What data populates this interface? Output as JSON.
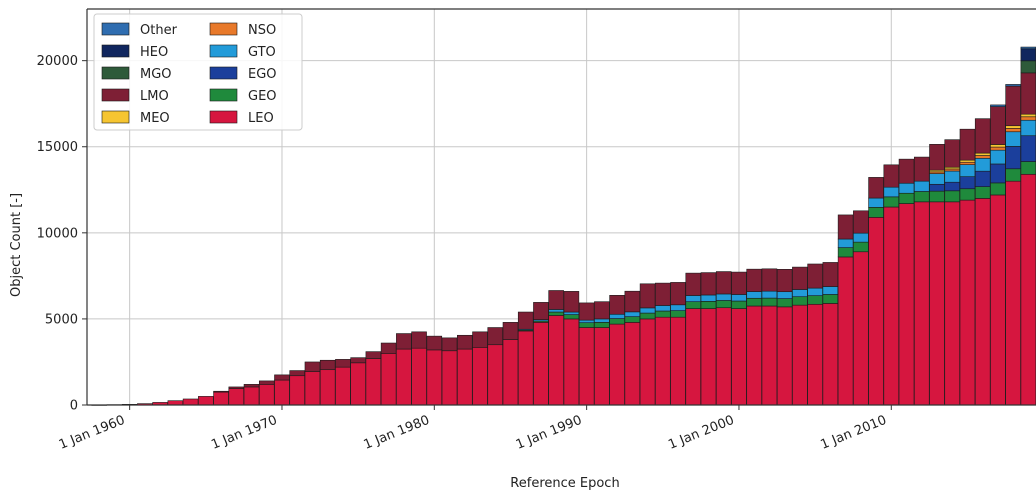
{
  "chart_data": {
    "type": "bar",
    "stacked": true,
    "xlabel": "Reference Epoch",
    "ylabel": "Object Count [-]",
    "ylim": [
      0,
      23000
    ],
    "yticks": [
      0,
      5000,
      10000,
      15000,
      20000
    ],
    "xlim": [
      1957.2,
      2019.5
    ],
    "xticks": [
      {
        "year": 1960,
        "label": "1 Jan 1960"
      },
      {
        "year": 1970,
        "label": "1 Jan 1970"
      },
      {
        "year": 1980,
        "label": "1 Jan 1980"
      },
      {
        "year": 1990,
        "label": "1 Jan 1990"
      },
      {
        "year": 2000,
        "label": "1 Jan 2000"
      },
      {
        "year": 2010,
        "label": "1 Jan 2010"
      }
    ],
    "grid": true,
    "legend_position": "top-left",
    "legend": [
      "Other",
      "HEO",
      "MGO",
      "LMO",
      "MEO",
      "NSO",
      "GTO",
      "EGO",
      "GEO",
      "LEO"
    ],
    "colors": {
      "LEO": "#d6163f",
      "GEO": "#1f8a3c",
      "EGO": "#1b3f9c",
      "GTO": "#229bd9",
      "NSO": "#e8792a",
      "MEO": "#f6c531",
      "LMO": "#7e1f35",
      "MGO": "#2e5a3a",
      "HEO": "#10265e",
      "Other": "#2f6db0"
    },
    "series_order": [
      "LEO",
      "GEO",
      "EGO",
      "GTO",
      "NSO",
      "MEO",
      "LMO",
      "MGO",
      "HEO",
      "Other"
    ],
    "x": [
      1958,
      1959,
      1960,
      1961,
      1962,
      1963,
      1964,
      1965,
      1966,
      1967,
      1968,
      1969,
      1970,
      1971,
      1972,
      1973,
      1974,
      1975,
      1976,
      1977,
      1978,
      1979,
      1980,
      1981,
      1982,
      1983,
      1984,
      1985,
      1986,
      1987,
      1988,
      1989,
      1990,
      1991,
      1992,
      1993,
      1994,
      1995,
      1996,
      1997,
      1998,
      1999,
      2000,
      2001,
      2002,
      2003,
      2004,
      2005,
      2006,
      2007,
      2008,
      2009,
      2010,
      2011,
      2012,
      2013,
      2014,
      2015,
      2016,
      2017,
      2018,
      2019
    ],
    "series": [
      {
        "name": "LEO",
        "values": [
          5,
          20,
          40,
          80,
          150,
          250,
          350,
          500,
          750,
          950,
          1050,
          1200,
          1450,
          1700,
          1950,
          2050,
          2200,
          2450,
          2700,
          3000,
          3250,
          3300,
          3200,
          3150,
          3250,
          3350,
          3500,
          3800,
          4300,
          4800,
          5200,
          5000,
          4500,
          4500,
          4700,
          4800,
          5000,
          5100,
          5100,
          5600,
          5600,
          5650,
          5600,
          5750,
          5750,
          5700,
          5800,
          5850,
          5900,
          8600,
          8900,
          10900,
          11500,
          11700,
          11800,
          11800,
          11800,
          11900,
          12000,
          12200,
          13000,
          13400
        ]
      },
      {
        "name": "GEO",
        "values": [
          0,
          0,
          0,
          0,
          0,
          0,
          0,
          0,
          0,
          0,
          0,
          0,
          0,
          0,
          0,
          0,
          0,
          0,
          0,
          0,
          0,
          0,
          0,
          0,
          0,
          0,
          0,
          0,
          50,
          80,
          200,
          250,
          280,
          300,
          320,
          330,
          340,
          360,
          380,
          400,
          420,
          420,
          440,
          450,
          460,
          480,
          490,
          500,
          520,
          540,
          560,
          580,
          590,
          600,
          600,
          620,
          640,
          660,
          680,
          700,
          720,
          740
        ]
      },
      {
        "name": "EGO",
        "values": [
          0,
          0,
          0,
          0,
          0,
          0,
          0,
          0,
          0,
          0,
          0,
          0,
          0,
          0,
          0,
          0,
          0,
          0,
          0,
          0,
          0,
          0,
          0,
          0,
          0,
          0,
          0,
          0,
          0,
          0,
          0,
          0,
          0,
          0,
          0,
          0,
          0,
          0,
          0,
          0,
          0,
          0,
          0,
          0,
          0,
          0,
          0,
          0,
          0,
          0,
          0,
          0,
          0,
          0,
          0,
          400,
          500,
          700,
          900,
          1100,
          1300,
          1500
        ]
      },
      {
        "name": "GTO",
        "values": [
          0,
          0,
          0,
          0,
          0,
          0,
          0,
          0,
          0,
          0,
          0,
          0,
          0,
          0,
          0,
          0,
          0,
          0,
          0,
          0,
          0,
          0,
          0,
          0,
          0,
          0,
          0,
          0,
          50,
          80,
          150,
          150,
          150,
          200,
          250,
          280,
          300,
          320,
          340,
          360,
          370,
          380,
          380,
          390,
          400,
          400,
          420,
          440,
          460,
          500,
          520,
          540,
          560,
          580,
          600,
          620,
          650,
          700,
          750,
          800,
          850,
          900
        ]
      },
      {
        "name": "NSO",
        "values": [
          0,
          0,
          0,
          0,
          0,
          0,
          0,
          0,
          0,
          0,
          0,
          0,
          0,
          0,
          0,
          0,
          0,
          0,
          0,
          0,
          0,
          0,
          0,
          0,
          0,
          0,
          0,
          0,
          0,
          0,
          0,
          0,
          0,
          0,
          0,
          0,
          0,
          0,
          0,
          0,
          0,
          0,
          0,
          0,
          0,
          0,
          0,
          0,
          0,
          0,
          0,
          0,
          0,
          0,
          0,
          100,
          120,
          140,
          160,
          180,
          200,
          200
        ]
      },
      {
        "name": "MEO",
        "values": [
          0,
          0,
          0,
          0,
          0,
          0,
          0,
          0,
          0,
          0,
          0,
          0,
          0,
          0,
          0,
          0,
          0,
          0,
          0,
          0,
          0,
          0,
          0,
          0,
          0,
          0,
          0,
          0,
          0,
          0,
          0,
          0,
          0,
          0,
          0,
          0,
          0,
          0,
          0,
          0,
          0,
          0,
          0,
          0,
          0,
          0,
          0,
          0,
          0,
          0,
          0,
          0,
          0,
          0,
          0,
          100,
          100,
          120,
          140,
          150,
          150,
          150
        ]
      },
      {
        "name": "LMO",
        "values": [
          0,
          0,
          0,
          0,
          0,
          0,
          0,
          0,
          50,
          100,
          150,
          200,
          300,
          300,
          550,
          550,
          450,
          300,
          400,
          600,
          900,
          950,
          800,
          750,
          800,
          900,
          1000,
          1000,
          1000,
          1000,
          1100,
          1200,
          1000,
          1000,
          1100,
          1200,
          1400,
          1300,
          1300,
          1300,
          1300,
          1300,
          1300,
          1300,
          1300,
          1300,
          1300,
          1400,
          1400,
          1400,
          1300,
          1200,
          1300,
          1400,
          1400,
          1500,
          1600,
          1800,
          2000,
          2200,
          2300,
          2400
        ]
      },
      {
        "name": "MGO",
        "values": [
          0,
          0,
          0,
          0,
          0,
          0,
          0,
          0,
          0,
          0,
          0,
          0,
          0,
          0,
          0,
          0,
          0,
          0,
          0,
          0,
          0,
          0,
          0,
          0,
          0,
          0,
          0,
          0,
          0,
          0,
          0,
          0,
          0,
          0,
          0,
          0,
          0,
          0,
          0,
          0,
          0,
          0,
          0,
          0,
          0,
          0,
          0,
          0,
          0,
          0,
          0,
          0,
          0,
          0,
          0,
          0,
          0,
          0,
          0,
          0,
          0,
          700
        ]
      },
      {
        "name": "HEO",
        "values": [
          0,
          0,
          0,
          0,
          0,
          0,
          0,
          0,
          0,
          0,
          0,
          0,
          0,
          0,
          0,
          0,
          0,
          0,
          0,
          0,
          0,
          0,
          0,
          0,
          0,
          0,
          0,
          0,
          0,
          0,
          0,
          0,
          0,
          0,
          0,
          0,
          0,
          0,
          0,
          0,
          0,
          0,
          0,
          0,
          0,
          0,
          0,
          0,
          0,
          0,
          0,
          0,
          0,
          0,
          0,
          0,
          0,
          0,
          0,
          0,
          0,
          700
        ]
      },
      {
        "name": "Other",
        "values": [
          0,
          0,
          0,
          0,
          0,
          0,
          0,
          0,
          0,
          0,
          0,
          0,
          0,
          0,
          0,
          0,
          0,
          0,
          0,
          0,
          0,
          0,
          0,
          0,
          0,
          0,
          0,
          0,
          0,
          0,
          0,
          0,
          0,
          0,
          0,
          0,
          0,
          0,
          0,
          0,
          0,
          0,
          0,
          0,
          0,
          0,
          0,
          0,
          0,
          0,
          0,
          0,
          0,
          0,
          0,
          0,
          0,
          0,
          0,
          100,
          100,
          100
        ]
      }
    ]
  }
}
